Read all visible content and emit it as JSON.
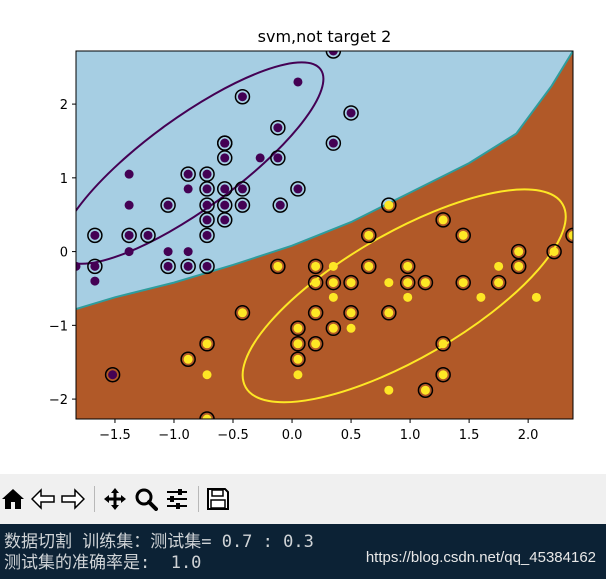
{
  "chart_data": {
    "type": "scatter",
    "title": "svm,not target 2",
    "xlabel": "",
    "ylabel": "",
    "xlim": [
      -1.83,
      2.38
    ],
    "ylim": [
      -2.27,
      2.72
    ],
    "xticks": [
      -1.5,
      -1.0,
      -0.5,
      0.0,
      0.5,
      1.0,
      1.5,
      2.0
    ],
    "xtick_labels": [
      "−1.5",
      "−1.0",
      "−0.5",
      "0.0",
      "0.5",
      "1.0",
      "1.5",
      "2.0"
    ],
    "yticks": [
      -2,
      -1,
      0,
      1,
      2
    ],
    "ytick_labels": [
      "−2",
      "−1",
      "0",
      "1",
      "2"
    ],
    "grid": false,
    "legend": "none",
    "colors": {
      "region_class0": "#a6cee3",
      "region_class1": "#b15928",
      "boundary": "#2f9c9c",
      "class0_points": "#440154",
      "class1_points": "#fde725",
      "ellipse_class0": "#440154",
      "ellipse_class1": "#fde725",
      "support_vector_ring": "#000000"
    },
    "decision_boundary": [
      [
        -1.83,
        -0.78
      ],
      [
        -1.5,
        -0.62
      ],
      [
        -1.0,
        -0.42
      ],
      [
        -0.5,
        -0.18
      ],
      [
        0.0,
        0.08
      ],
      [
        0.5,
        0.4
      ],
      [
        1.0,
        0.8
      ],
      [
        1.5,
        1.2
      ],
      [
        1.9,
        1.6
      ],
      [
        2.2,
        2.25
      ],
      [
        2.38,
        2.72
      ]
    ],
    "ellipses": [
      {
        "class": 0,
        "center": [
          -0.85,
          1.2
        ],
        "rx": 1.35,
        "ry": 0.62,
        "angle": 36
      },
      {
        "class": 1,
        "center": [
          0.95,
          -0.6
        ],
        "rx": 1.55,
        "ry": 0.85,
        "angle": 30
      }
    ],
    "series": [
      {
        "class": 0,
        "support_vectors": [
          [
            -1.67,
            0.22
          ],
          [
            -1.67,
            -0.2
          ],
          [
            -1.38,
            0.22
          ],
          [
            -1.22,
            0.22
          ],
          [
            -1.05,
            0.63
          ],
          [
            -1.05,
            -0.2
          ],
          [
            -0.88,
            1.05
          ],
          [
            -0.88,
            -0.2
          ],
          [
            -0.72,
            1.05
          ],
          [
            -0.72,
            0.85
          ],
          [
            -0.72,
            0.63
          ],
          [
            -0.72,
            0.43
          ],
          [
            -0.72,
            0.22
          ],
          [
            -0.72,
            -0.2
          ],
          [
            -0.57,
            0.85
          ],
          [
            -0.57,
            0.63
          ],
          [
            -0.57,
            0.43
          ],
          [
            -0.57,
            1.47
          ],
          [
            -0.57,
            1.27
          ],
          [
            -0.57,
            1.47
          ],
          [
            -0.42,
            0.85
          ],
          [
            -0.42,
            0.63
          ],
          [
            -0.42,
            2.1
          ],
          [
            -0.12,
            1.68
          ],
          [
            -0.12,
            1.27
          ],
          [
            0.05,
            0.85
          ],
          [
            -0.1,
            0.63
          ],
          [
            0.35,
            2.72
          ],
          [
            0.35,
            1.47
          ],
          [
            0.5,
            1.88
          ],
          [
            -1.52,
            -1.67
          ]
        ],
        "points": [
          [
            -1.83,
            -0.2
          ],
          [
            -1.67,
            -0.4
          ],
          [
            -1.38,
            1.05
          ],
          [
            -1.38,
            0.63
          ],
          [
            -1.38,
            0.0
          ],
          [
            -1.05,
            0.0
          ],
          [
            -0.88,
            0.0
          ],
          [
            -0.88,
            0.85
          ],
          [
            -0.27,
            1.27
          ],
          [
            0.05,
            2.3
          ]
        ]
      },
      {
        "class": 1,
        "support_vectors": [
          [
            -0.88,
            -1.46
          ],
          [
            -0.72,
            -2.27
          ],
          [
            -0.72,
            -1.25
          ],
          [
            -0.42,
            -0.83
          ],
          [
            -0.12,
            -0.2
          ],
          [
            0.05,
            -1.04
          ],
          [
            0.05,
            -1.25
          ],
          [
            0.05,
            -1.46
          ],
          [
            0.2,
            -0.2
          ],
          [
            0.2,
            -0.42
          ],
          [
            0.2,
            -0.83
          ],
          [
            0.2,
            -1.25
          ],
          [
            0.35,
            -0.42
          ],
          [
            0.35,
            -1.04
          ],
          [
            0.5,
            -0.42
          ],
          [
            0.5,
            -0.83
          ],
          [
            0.65,
            0.22
          ],
          [
            0.65,
            -0.2
          ],
          [
            0.82,
            0.63
          ],
          [
            0.82,
            -0.83
          ],
          [
            0.98,
            -0.2
          ],
          [
            0.98,
            -0.42
          ],
          [
            1.13,
            -0.42
          ],
          [
            1.13,
            -1.88
          ],
          [
            1.28,
            0.43
          ],
          [
            1.28,
            -1.25
          ],
          [
            1.28,
            -1.67
          ],
          [
            1.45,
            0.22
          ],
          [
            1.45,
            -0.42
          ],
          [
            1.75,
            -0.42
          ],
          [
            1.92,
            0.0
          ],
          [
            1.92,
            -0.2
          ],
          [
            2.22,
            0.0
          ],
          [
            2.38,
            0.22
          ]
        ],
        "points": [
          [
            -0.72,
            -1.67
          ],
          [
            0.05,
            -1.67
          ],
          [
            0.35,
            -0.2
          ],
          [
            0.35,
            -0.62
          ],
          [
            0.5,
            -1.04
          ],
          [
            0.82,
            -0.42
          ],
          [
            0.82,
            -1.88
          ],
          [
            0.98,
            -0.62
          ],
          [
            1.6,
            -0.62
          ],
          [
            1.75,
            -0.2
          ],
          [
            2.07,
            -0.62
          ]
        ]
      }
    ]
  },
  "toolbar": {
    "buttons": [
      {
        "name": "home-icon",
        "tooltip": "Reset original view"
      },
      {
        "name": "back-icon",
        "tooltip": "Back to previous view"
      },
      {
        "name": "forward-icon",
        "tooltip": "Forward to next view"
      },
      {
        "name": "pan-icon",
        "tooltip": "Pan axes"
      },
      {
        "name": "zoom-icon",
        "tooltip": "Zoom to rectangle"
      },
      {
        "name": "configure-icon",
        "tooltip": "Configure subplots"
      },
      {
        "name": "save-icon",
        "tooltip": "Save the figure"
      }
    ]
  },
  "console": {
    "line1": "数据切割 训练集：测试集= 0.7 : 0.3",
    "line2": "测试集的准确率是:  1.0",
    "watermark": "https://blog.csdn.net/qq_45384162"
  }
}
